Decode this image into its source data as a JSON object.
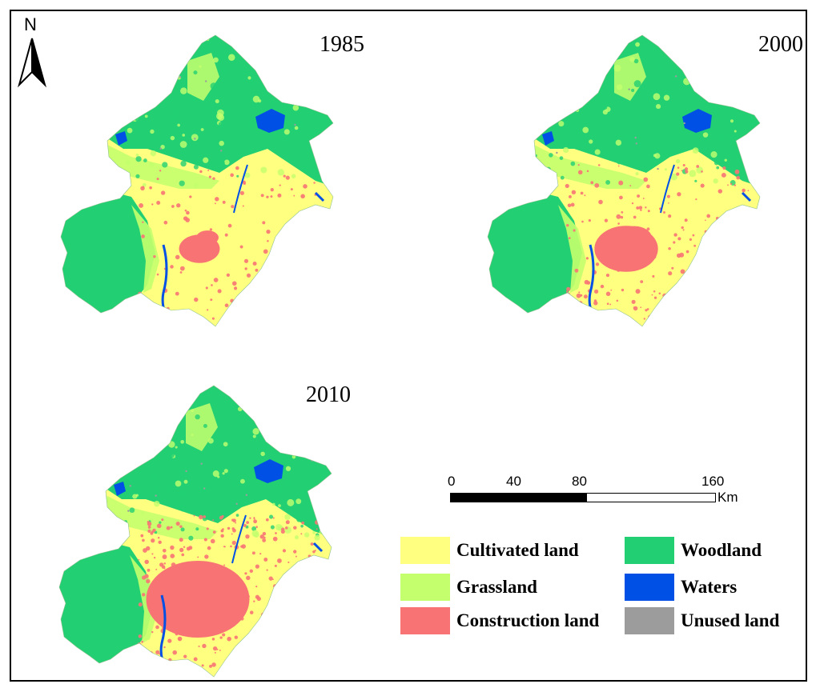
{
  "north_label": "N",
  "maps": [
    {
      "year": "1985",
      "construction_level": 0.12
    },
    {
      "year": "2000",
      "construction_level": 0.35
    },
    {
      "year": "2010",
      "construction_level": 0.75
    }
  ],
  "scale_bar": {
    "ticks": [
      "0",
      "40",
      "80",
      "160"
    ],
    "unit": "Km"
  },
  "legend": [
    {
      "label": "Cultivated land",
      "color": "#ffff80"
    },
    {
      "label": "Woodland",
      "color": "#22d073"
    },
    {
      "label": "Grassland",
      "color": "#c4ff6e"
    },
    {
      "label": "Waters",
      "color": "#0050e6"
    },
    {
      "label": "Construction land",
      "color": "#f87474"
    },
    {
      "label": "Unused land",
      "color": "#9c9c9c"
    }
  ],
  "colors": {
    "cultivated": "#ffff80",
    "woodland": "#22d073",
    "grassland": "#c4ff6e",
    "waters": "#0050e6",
    "construction": "#f87474",
    "unused": "#9c9c9c"
  }
}
